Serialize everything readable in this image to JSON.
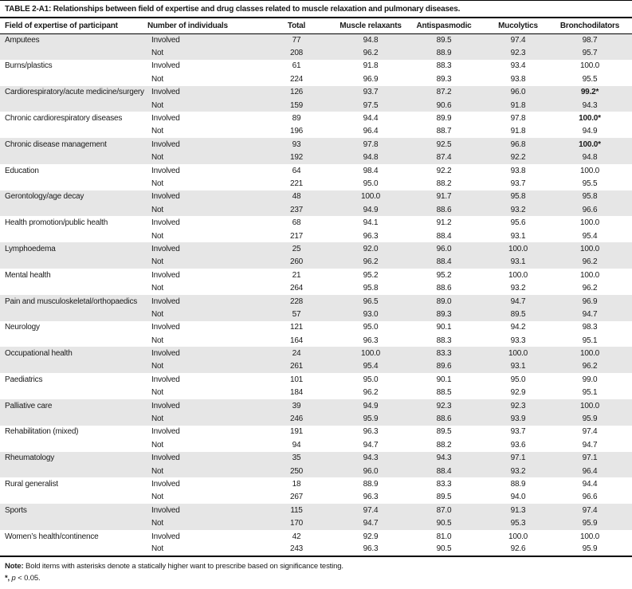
{
  "title": {
    "prefix": "TABLE 2-A1:",
    "text": "Relationships between field of expertise and drug classes related to muscle relaxation and pulmonary diseases."
  },
  "colors": {
    "shaded_row": "#e6e6e6",
    "rule": "#000000"
  },
  "table": {
    "headers": {
      "field": "Field of expertise of participant",
      "individuals": "Number of individuals",
      "total": "Total",
      "muscle_relaxants": "Muscle relaxants",
      "antispasmodic": "Antispasmodic",
      "mucolytics": "Mucolytics",
      "bronchodilators": "Bronchodilators"
    },
    "groups": [
      {
        "field": "Amputees",
        "rows": [
          {
            "involvement": "Involved",
            "total": "77",
            "muscle_relaxants": "94.8",
            "antispasmodic": "89.5",
            "mucolytics": "97.4",
            "bronchodilators": "98.7",
            "bron_bold": false
          },
          {
            "involvement": "Not",
            "total": "208",
            "muscle_relaxants": "96.2",
            "antispasmodic": "88.9",
            "mucolytics": "92.3",
            "bronchodilators": "95.7",
            "bron_bold": false
          }
        ]
      },
      {
        "field": "Burns/plastics",
        "rows": [
          {
            "involvement": "Involved",
            "total": "61",
            "muscle_relaxants": "91.8",
            "antispasmodic": "88.3",
            "mucolytics": "93.4",
            "bronchodilators": "100.0",
            "bron_bold": false
          },
          {
            "involvement": "Not",
            "total": "224",
            "muscle_relaxants": "96.9",
            "antispasmodic": "89.3",
            "mucolytics": "93.8",
            "bronchodilators": "95.5",
            "bron_bold": false
          }
        ]
      },
      {
        "field": "Cardiorespiratory/acute medicine/surgery",
        "rows": [
          {
            "involvement": "Involved",
            "total": "126",
            "muscle_relaxants": "93.7",
            "antispasmodic": "87.2",
            "mucolytics": "96.0",
            "bronchodilators": "99.2*",
            "bron_bold": true
          },
          {
            "involvement": "Not",
            "total": "159",
            "muscle_relaxants": "97.5",
            "antispasmodic": "90.6",
            "mucolytics": "91.8",
            "bronchodilators": "94.3",
            "bron_bold": false
          }
        ]
      },
      {
        "field": "Chronic cardiorespiratory diseases",
        "rows": [
          {
            "involvement": "Involved",
            "total": "89",
            "muscle_relaxants": "94.4",
            "antispasmodic": "89.9",
            "mucolytics": "97.8",
            "bronchodilators": "100.0*",
            "bron_bold": true
          },
          {
            "involvement": "Not",
            "total": "196",
            "muscle_relaxants": "96.4",
            "antispasmodic": "88.7",
            "mucolytics": "91.8",
            "bronchodilators": "94.9",
            "bron_bold": false
          }
        ]
      },
      {
        "field": "Chronic disease management",
        "rows": [
          {
            "involvement": "Involved",
            "total": "93",
            "muscle_relaxants": "97.8",
            "antispasmodic": "92.5",
            "mucolytics": "96.8",
            "bronchodilators": "100.0*",
            "bron_bold": true
          },
          {
            "involvement": "Not",
            "total": "192",
            "muscle_relaxants": "94.8",
            "antispasmodic": "87.4",
            "mucolytics": "92.2",
            "bronchodilators": "94.8",
            "bron_bold": false
          }
        ]
      },
      {
        "field": "Education",
        "rows": [
          {
            "involvement": "Involved",
            "total": "64",
            "muscle_relaxants": "98.4",
            "antispasmodic": "92.2",
            "mucolytics": "93.8",
            "bronchodilators": "100.0",
            "bron_bold": false
          },
          {
            "involvement": "Not",
            "total": "221",
            "muscle_relaxants": "95.0",
            "antispasmodic": "88.2",
            "mucolytics": "93.7",
            "bronchodilators": "95.5",
            "bron_bold": false
          }
        ]
      },
      {
        "field": "Gerontology/age decay",
        "rows": [
          {
            "involvement": "Involved",
            "total": "48",
            "muscle_relaxants": "100.0",
            "antispasmodic": "91.7",
            "mucolytics": "95.8",
            "bronchodilators": "95.8",
            "bron_bold": false
          },
          {
            "involvement": "Not",
            "total": "237",
            "muscle_relaxants": "94.9",
            "antispasmodic": "88.6",
            "mucolytics": "93.2",
            "bronchodilators": "96.6",
            "bron_bold": false
          }
        ]
      },
      {
        "field": "Health promotion/public health",
        "rows": [
          {
            "involvement": "Involved",
            "total": "68",
            "muscle_relaxants": "94.1",
            "antispasmodic": "91.2",
            "mucolytics": "95.6",
            "bronchodilators": "100.0",
            "bron_bold": false
          },
          {
            "involvement": "Not",
            "total": "217",
            "muscle_relaxants": "96.3",
            "antispasmodic": "88.4",
            "mucolytics": "93.1",
            "bronchodilators": "95.4",
            "bron_bold": false
          }
        ]
      },
      {
        "field": "Lymphoedema",
        "rows": [
          {
            "involvement": "Involved",
            "total": "25",
            "muscle_relaxants": "92.0",
            "antispasmodic": "96.0",
            "mucolytics": "100.0",
            "bronchodilators": "100.0",
            "bron_bold": false
          },
          {
            "involvement": "Not",
            "total": "260",
            "muscle_relaxants": "96.2",
            "antispasmodic": "88.4",
            "mucolytics": "93.1",
            "bronchodilators": "96.2",
            "bron_bold": false
          }
        ]
      },
      {
        "field": "Mental health",
        "rows": [
          {
            "involvement": "Involved",
            "total": "21",
            "muscle_relaxants": "95.2",
            "antispasmodic": "95.2",
            "mucolytics": "100.0",
            "bronchodilators": "100.0",
            "bron_bold": false
          },
          {
            "involvement": "Not",
            "total": "264",
            "muscle_relaxants": "95.8",
            "antispasmodic": "88.6",
            "mucolytics": "93.2",
            "bronchodilators": "96.2",
            "bron_bold": false
          }
        ]
      },
      {
        "field": "Pain and musculoskeletal/orthopaedics",
        "rows": [
          {
            "involvement": "Involved",
            "total": "228",
            "muscle_relaxants": "96.5",
            "antispasmodic": "89.0",
            "mucolytics": "94.7",
            "bronchodilators": "96.9",
            "bron_bold": false
          },
          {
            "involvement": "Not",
            "total": "57",
            "muscle_relaxants": "93.0",
            "antispasmodic": "89.3",
            "mucolytics": "89.5",
            "bronchodilators": "94.7",
            "bron_bold": false
          }
        ]
      },
      {
        "field": "Neurology",
        "rows": [
          {
            "involvement": "Involved",
            "total": "121",
            "muscle_relaxants": "95.0",
            "antispasmodic": "90.1",
            "mucolytics": "94.2",
            "bronchodilators": "98.3",
            "bron_bold": false
          },
          {
            "involvement": "Not",
            "total": "164",
            "muscle_relaxants": "96.3",
            "antispasmodic": "88.3",
            "mucolytics": "93.3",
            "bronchodilators": "95.1",
            "bron_bold": false
          }
        ]
      },
      {
        "field": "Occupational health",
        "rows": [
          {
            "involvement": "Involved",
            "total": "24",
            "muscle_relaxants": "100.0",
            "antispasmodic": "83.3",
            "mucolytics": "100.0",
            "bronchodilators": "100.0",
            "bron_bold": false
          },
          {
            "involvement": "Not",
            "total": "261",
            "muscle_relaxants": "95.4",
            "antispasmodic": "89.6",
            "mucolytics": "93.1",
            "bronchodilators": "96.2",
            "bron_bold": false
          }
        ]
      },
      {
        "field": "Paediatrics",
        "rows": [
          {
            "involvement": "Involved",
            "total": "101",
            "muscle_relaxants": "95.0",
            "antispasmodic": "90.1",
            "mucolytics": "95.0",
            "bronchodilators": "99.0",
            "bron_bold": false
          },
          {
            "involvement": "Not",
            "total": "184",
            "muscle_relaxants": "96.2",
            "antispasmodic": "88.5",
            "mucolytics": "92.9",
            "bronchodilators": "95.1",
            "bron_bold": false
          }
        ]
      },
      {
        "field": "Palliative care",
        "rows": [
          {
            "involvement": "Involved",
            "total": "39",
            "muscle_relaxants": "94.9",
            "antispasmodic": "92.3",
            "mucolytics": "92.3",
            "bronchodilators": "100.0",
            "bron_bold": false
          },
          {
            "involvement": "Not",
            "total": "246",
            "muscle_relaxants": "95.9",
            "antispasmodic": "88.6",
            "mucolytics": "93.9",
            "bronchodilators": "95.9",
            "bron_bold": false
          }
        ]
      },
      {
        "field": "Rehabilitation (mixed)",
        "rows": [
          {
            "involvement": "Involved",
            "total": "191",
            "muscle_relaxants": "96.3",
            "antispasmodic": "89.5",
            "mucolytics": "93.7",
            "bronchodilators": "97.4",
            "bron_bold": false
          },
          {
            "involvement": "Not",
            "total": "94",
            "muscle_relaxants": "94.7",
            "antispasmodic": "88.2",
            "mucolytics": "93.6",
            "bronchodilators": "94.7",
            "bron_bold": false
          }
        ]
      },
      {
        "field": "Rheumatology",
        "rows": [
          {
            "involvement": "Involved",
            "total": "35",
            "muscle_relaxants": "94.3",
            "antispasmodic": "94.3",
            "mucolytics": "97.1",
            "bronchodilators": "97.1",
            "bron_bold": false
          },
          {
            "involvement": "Not",
            "total": "250",
            "muscle_relaxants": "96.0",
            "antispasmodic": "88.4",
            "mucolytics": "93.2",
            "bronchodilators": "96.4",
            "bron_bold": false
          }
        ]
      },
      {
        "field": "Rural generalist",
        "rows": [
          {
            "involvement": "Involved",
            "total": "18",
            "muscle_relaxants": "88.9",
            "antispasmodic": "83.3",
            "mucolytics": "88.9",
            "bronchodilators": "94.4",
            "bron_bold": false
          },
          {
            "involvement": "Not",
            "total": "267",
            "muscle_relaxants": "96.3",
            "antispasmodic": "89.5",
            "mucolytics": "94.0",
            "bronchodilators": "96.6",
            "bron_bold": false
          }
        ]
      },
      {
        "field": "Sports",
        "rows": [
          {
            "involvement": "Involved",
            "total": "115",
            "muscle_relaxants": "97.4",
            "antispasmodic": "87.0",
            "mucolytics": "91.3",
            "bronchodilators": "97.4",
            "bron_bold": false
          },
          {
            "involvement": "Not",
            "total": "170",
            "muscle_relaxants": "94.7",
            "antispasmodic": "90.5",
            "mucolytics": "95.3",
            "bronchodilators": "95.9",
            "bron_bold": false
          }
        ]
      },
      {
        "field": "Women’s health/continence",
        "rows": [
          {
            "involvement": "Involved",
            "total": "42",
            "muscle_relaxants": "92.9",
            "antispasmodic": "81.0",
            "mucolytics": "100.0",
            "bronchodilators": "100.0",
            "bron_bold": false
          },
          {
            "involvement": "Not",
            "total": "243",
            "muscle_relaxants": "96.3",
            "antispasmodic": "90.5",
            "mucolytics": "92.6",
            "bronchodilators": "95.9",
            "bron_bold": false
          }
        ]
      }
    ]
  },
  "footnotes": {
    "note_prefix": "Note:",
    "note_text": "Bold items with asterisks denote a statically higher want to prescribe based on significance testing.",
    "sig_symbol": "*,",
    "sig_var": "p",
    "sig_rest": "< 0.05."
  }
}
